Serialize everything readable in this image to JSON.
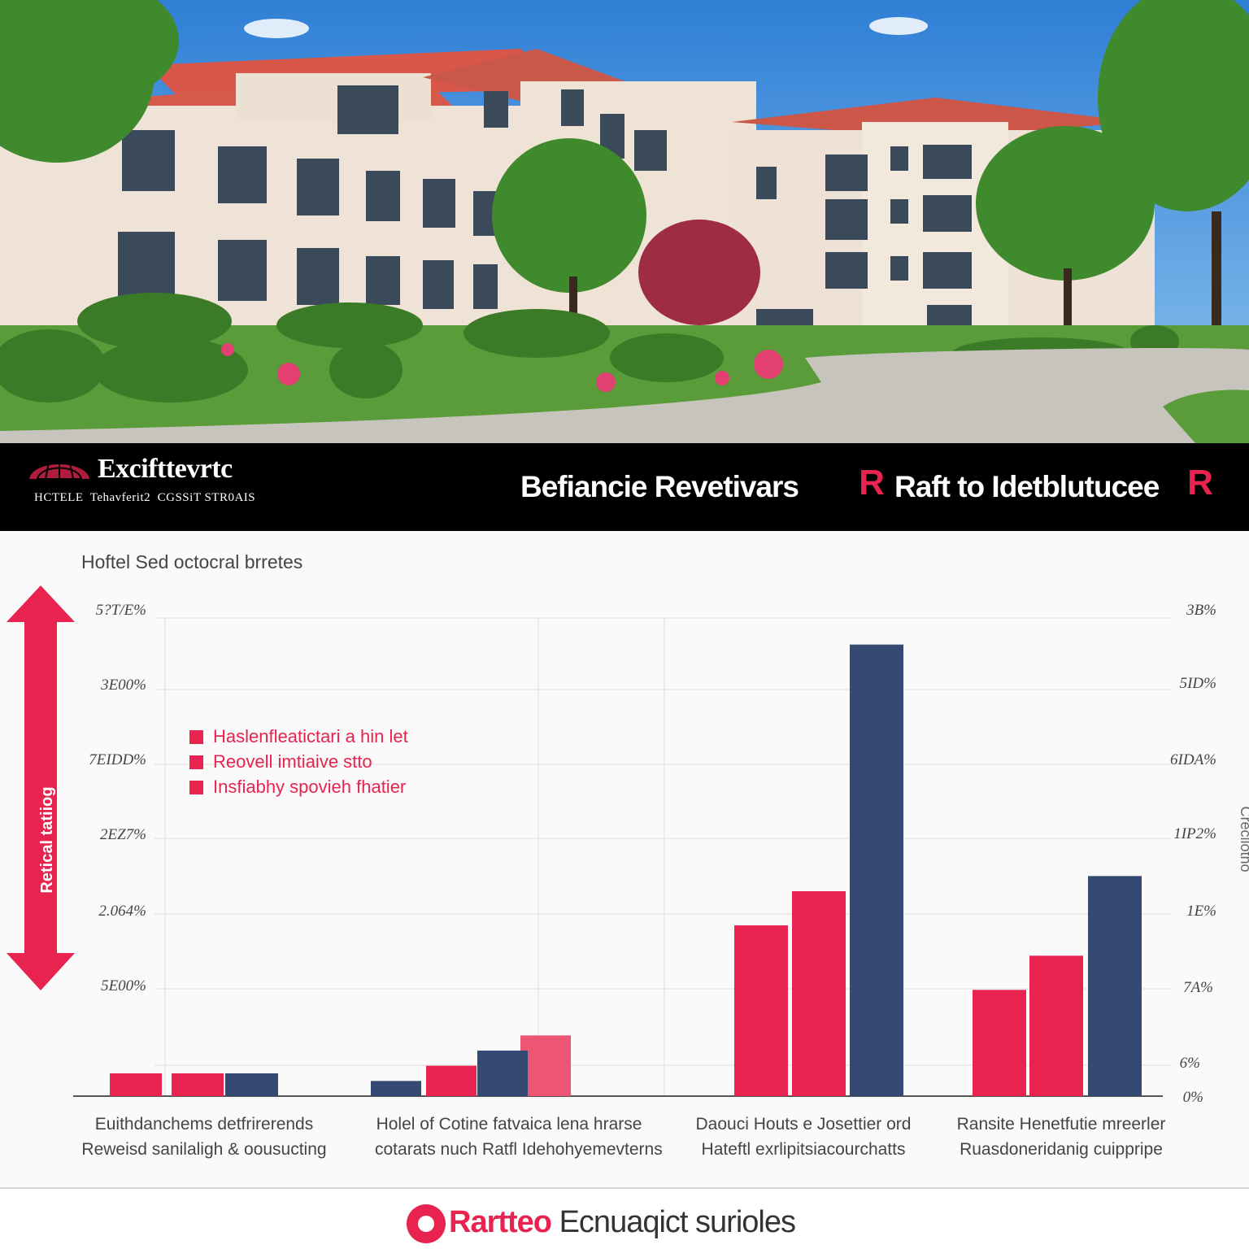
{
  "banner": {
    "brand_name": "Excifttevrtc",
    "brand_tagline": "HCTELE  Tehavferit2  CGSSiT STR0AIS",
    "headline_left": "Befiancie Revetivars",
    "headline_right": "Raft to Idetblutucee",
    "badge_letter": "R"
  },
  "chart": {
    "title": "Hoftel Sed octocral brretes",
    "y_axis_left_label": "Retical tatiiog",
    "y_axis_right_label": "Crecilotho",
    "left_ticks": [
      "5?T/E%",
      "3E00%",
      "7EIDD%",
      "2EZ7%",
      "2.064%",
      "5E00%"
    ],
    "right_ticks": [
      "3B%",
      "5ID%",
      "6IDA%",
      "1IP2%",
      "1E%",
      "7A%",
      "6%",
      "0%"
    ],
    "legend": [
      "Haslenfleatictari a hin let",
      "Reovell imtiaive stto",
      "Insfiabhy spovieh fhatier"
    ],
    "categories": [
      {
        "line1": "Euithdanchems detfrirerends",
        "line2": "Reweisd sanilaligh & oousucting"
      },
      {
        "line1": "Holel of Cotine fatvaica lena hrarse",
        "line2": "cotarats nuch Ratfl Idehohyemevterns"
      },
      {
        "line1": "Daouci Houts e Josettier ord",
        "line2": "Hateftl exrlipitsiacourchatts"
      },
      {
        "line1": "Ransite Henetfutie mreerler",
        "line2": "Ruasdoneridanig cuippripe"
      }
    ]
  },
  "chart_data": {
    "type": "bar",
    "title": "Hoftel Sed octocral brretes",
    "categories": [
      "Euithdanchems detfrirerends",
      "Holel of Cotine fatvaica lena hrarse",
      "Daouci Houts e Josettier ord",
      "Ransite Henetfutie mreerler"
    ],
    "series": [
      {
        "name": "Haslenfleatictari a hin let",
        "color": "#e8234f",
        "values": [
          6,
          8,
          45,
          28
        ]
      },
      {
        "name": "Reovell imtiaive stto",
        "color": "#e8234f",
        "values": [
          6,
          16,
          54,
          37
        ]
      },
      {
        "name": "Insfiabhy spovieh fhatier",
        "color": "#354a72",
        "values": [
          6,
          4,
          119,
          58
        ]
      }
    ],
    "extra_bars": [
      {
        "category": "Euithdanchems detfrirerends",
        "color": "#354a72",
        "value": 6
      },
      {
        "category": "Holel of Cotine fatvaica lena hrarse",
        "color": "#354a72",
        "value": 12
      }
    ],
    "ylim": [
      0,
      126
    ],
    "grid": true,
    "legend_position": "top-left"
  },
  "footer": {
    "accent": "Rartteo",
    "rest": " Ecnuaqict surioles"
  },
  "colors": {
    "accent": "#e8234f",
    "navy": "#354a72",
    "banner": "#000000"
  }
}
